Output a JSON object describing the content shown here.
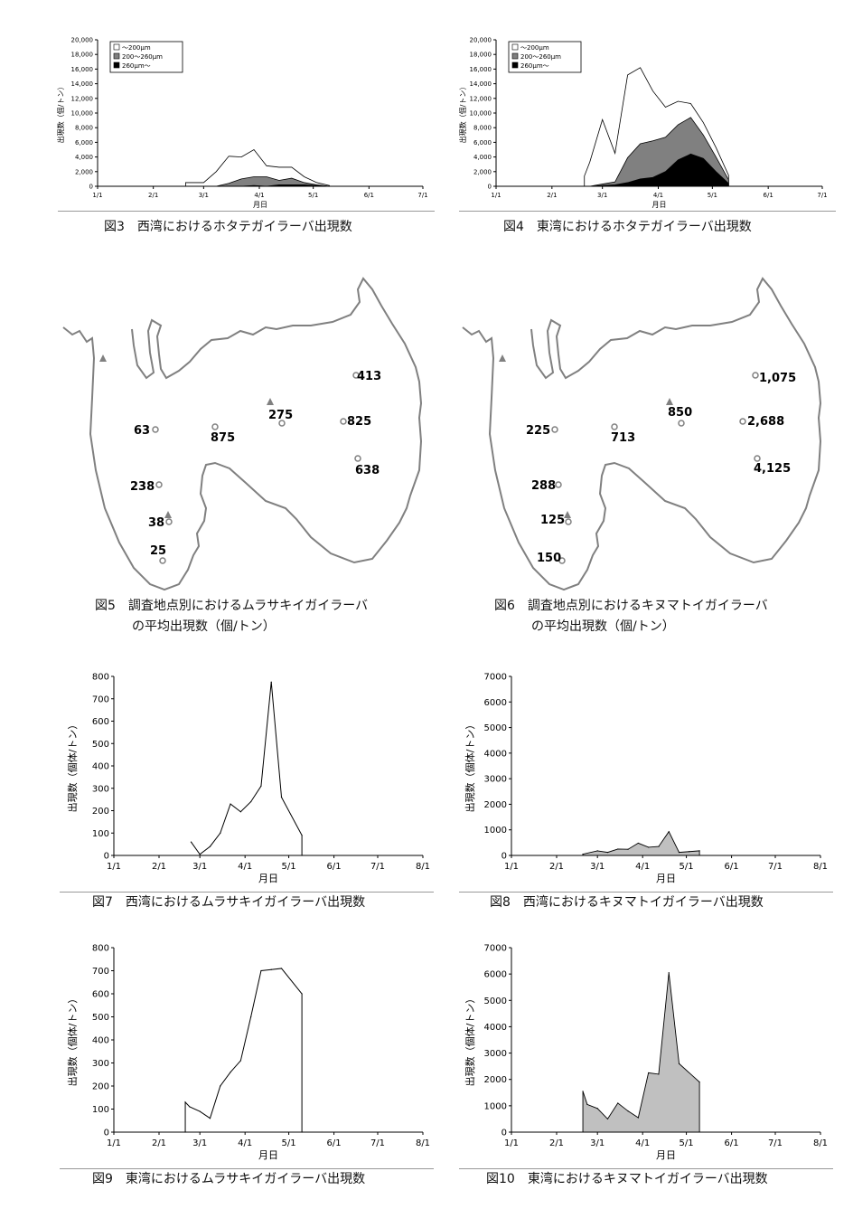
{
  "captions": {
    "fig3": "図3　西湾におけるホタテガイラーバ出現数",
    "fig4": "図4　東湾におけるホタテガイラーバ出現数",
    "fig5_l1": "図5　調査地点別におけるムラサキイガイラーバ",
    "fig5_l2": "の平均出現数（個/トン）",
    "fig6_l1": "図6　調査地点別におけるキヌマトイガイラーバ",
    "fig6_l2": "の平均出現数（個/トン）",
    "fig7": "図7　西湾におけるムラサキイガイラーバ出現数",
    "fig8": "図8　西湾におけるキヌマトイガイラーバ出現数",
    "fig9": "図9　東湾におけるムラサキイガイラーバ出現数",
    "fig10": "図10　東湾におけるキヌマトイガイラーバ出現数"
  },
  "maps": {
    "fig5": {
      "labels": [
        "413",
        "63",
        "875",
        "275",
        "825",
        "638",
        "238",
        "38",
        "25"
      ]
    },
    "fig6": {
      "labels": [
        "1,075",
        "225",
        "713",
        "850",
        "2,688",
        "4,125",
        "288",
        "125",
        "150"
      ]
    }
  },
  "chart_data": [
    {
      "id": "fig3",
      "type": "area",
      "stacked": true,
      "ylabel": "出現数（個/トン）",
      "xlabel": "月日",
      "ylim": [
        0,
        20000
      ],
      "yticks": [
        "0",
        "2,000",
        "4,000",
        "6,000",
        "8,000",
        "10,000",
        "12,000",
        "14,000",
        "16,000",
        "18,000",
        "20,000"
      ],
      "xticks": [
        "1/1",
        "2/1",
        "3/1",
        "4/1",
        "5/1",
        "6/1",
        "7/1"
      ],
      "x": [
        "2/19",
        "3/1",
        "3/8",
        "3/15",
        "3/22",
        "3/29",
        "4/5",
        "4/12",
        "4/19",
        "4/26",
        "5/3",
        "5/10"
      ],
      "series": [
        {
          "name": "～200μm",
          "fill": "#ffffff",
          "values": [
            500,
            500,
            2000,
            3700,
            3000,
            3700,
            1500,
            1800,
            1500,
            800,
            300,
            100
          ]
        },
        {
          "name": "200～260μm",
          "fill": "#808080",
          "values": [
            0,
            0,
            0,
            400,
            1000,
            1200,
            1300,
            600,
            900,
            300,
            100,
            0
          ]
        },
        {
          "name": "260μm～",
          "fill": "#000000",
          "values": [
            0,
            0,
            0,
            0,
            0,
            100,
            0,
            200,
            200,
            200,
            100,
            0
          ]
        }
      ],
      "legend": "top-left"
    },
    {
      "id": "fig4",
      "type": "area",
      "stacked": true,
      "ylabel": "出現数（個/トン）",
      "xlabel": "月日",
      "ylim": [
        0,
        20000
      ],
      "yticks": [
        "0",
        "2,000",
        "4,000",
        "6,000",
        "8,000",
        "10,000",
        "12,000",
        "14,000",
        "16,000",
        "18,000",
        "20,000"
      ],
      "xticks": [
        "1/1",
        "2/1",
        "3/1",
        "4/1",
        "5/1",
        "6/1",
        "7/1"
      ],
      "x": [
        "2/19",
        "2/22",
        "3/1",
        "3/8",
        "3/15",
        "3/22",
        "3/29",
        "4/5",
        "4/12",
        "4/19",
        "4/26",
        "5/3",
        "5/10"
      ],
      "series": [
        {
          "name": "～200μm",
          "fill": "#ffffff",
          "values": [
            1400,
            3300,
            8800,
            3900,
            11300,
            10400,
            6800,
            4100,
            3200,
            1900,
            1700,
            1300,
            600
          ]
        },
        {
          "name": "200～260μm",
          "fill": "#808080",
          "values": [
            0,
            0,
            200,
            400,
            3400,
            4800,
            5000,
            4700,
            4800,
            5000,
            3200,
            2000,
            500
          ]
        },
        {
          "name": "260μm～",
          "fill": "#000000",
          "values": [
            0,
            0,
            100,
            200,
            500,
            1000,
            1200,
            2000,
            3600,
            4400,
            3800,
            2000,
            400
          ]
        }
      ],
      "legend": "top-left"
    },
    {
      "id": "fig7",
      "type": "line",
      "ylabel": "出現数（個体/トン）",
      "xlabel": "月日",
      "ylim": [
        0,
        800
      ],
      "yticks": [
        "0",
        "100",
        "200",
        "300",
        "400",
        "500",
        "600",
        "700",
        "800"
      ],
      "xticks": [
        "1/1",
        "2/1",
        "3/1",
        "4/1",
        "5/1",
        "6/1",
        "7/1",
        "8/1"
      ],
      "x": [
        "2/23",
        "3/1",
        "3/8",
        "3/15",
        "3/22",
        "3/29",
        "4/5",
        "4/12",
        "4/19",
        "4/26",
        "5/10",
        "5/10"
      ],
      "values": [
        60,
        5,
        40,
        100,
        230,
        195,
        240,
        310,
        775,
        260,
        90,
        0
      ],
      "fill": "none"
    },
    {
      "id": "fig8",
      "type": "area",
      "ylabel": "出現数（個体/トン）",
      "xlabel": "月日",
      "ylim": [
        0,
        7000
      ],
      "yticks": [
        "0",
        "1000",
        "2000",
        "3000",
        "4000",
        "5000",
        "6000",
        "7000"
      ],
      "xticks": [
        "1/1",
        "2/1",
        "3/1",
        "4/1",
        "5/1",
        "6/1",
        "7/1",
        "8/1"
      ],
      "x": [
        "2/19",
        "3/1",
        "3/8",
        "3/15",
        "3/22",
        "3/29",
        "4/5",
        "4/12",
        "4/19",
        "4/26",
        "5/3",
        "5/10"
      ],
      "values": [
        50,
        180,
        120,
        250,
        240,
        480,
        320,
        350,
        930,
        120,
        150,
        180
      ],
      "fill": "#c0c0c0"
    },
    {
      "id": "fig9",
      "type": "line",
      "ylabel": "出現数（個体/トン）",
      "xlabel": "月日",
      "ylim": [
        0,
        800
      ],
      "yticks": [
        "0",
        "100",
        "200",
        "300",
        "400",
        "500",
        "600",
        "700",
        "800"
      ],
      "xticks": [
        "1/1",
        "2/1",
        "3/1",
        "4/1",
        "5/1",
        "6/1",
        "7/1",
        "8/1"
      ],
      "x": [
        "2/19",
        "2/19",
        "2/22",
        "3/1",
        "3/8",
        "3/15",
        "3/22",
        "3/29",
        "4/5",
        "4/12",
        "4/19",
        "4/26",
        "5/10",
        "5/10"
      ],
      "values": [
        0,
        130,
        110,
        90,
        60,
        200,
        260,
        310,
        500,
        700,
        705,
        710,
        600,
        0
      ],
      "fill": "none"
    },
    {
      "id": "fig10",
      "type": "area",
      "ylabel": "出現数（個体/トン）",
      "xlabel": "月日",
      "ylim": [
        0,
        7000
      ],
      "yticks": [
        "0",
        "1000",
        "2000",
        "3000",
        "4000",
        "5000",
        "6000",
        "7000"
      ],
      "xticks": [
        "1/1",
        "2/1",
        "3/1",
        "4/1",
        "5/1",
        "6/1",
        "7/1",
        "8/1"
      ],
      "x": [
        "2/19",
        "2/22",
        "3/1",
        "3/8",
        "3/15",
        "3/22",
        "3/29",
        "4/5",
        "4/12",
        "4/19",
        "4/26",
        "5/10"
      ],
      "values": [
        1550,
        1050,
        900,
        500,
        1100,
        800,
        550,
        2250,
        2200,
        6050,
        2600,
        1900
      ],
      "fill": "#c0c0c0"
    }
  ]
}
